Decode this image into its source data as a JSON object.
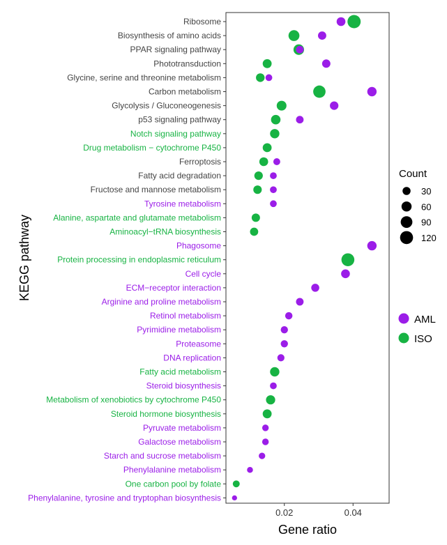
{
  "chart_data": {
    "type": "scatter",
    "xlabel": "Gene ratio",
    "ylabel": "KEGG pathway",
    "xlim": [
      0.003,
      0.0505
    ],
    "xticks": [
      0.02,
      0.04
    ],
    "xtick_labels": [
      "0.02",
      "0.04"
    ],
    "grid": false,
    "legend_size": {
      "title": "Count",
      "entries": [
        {
          "label": "30",
          "value": 30
        },
        {
          "label": "60",
          "value": 60
        },
        {
          "label": "90",
          "value": 90
        },
        {
          "label": "120",
          "value": 120
        }
      ]
    },
    "legend_color": {
      "entries": [
        {
          "label": "AML",
          "color": "#9b1de8"
        },
        {
          "label": "ISO",
          "color": "#17b343"
        }
      ]
    },
    "colors": {
      "AML": "#9b1de8",
      "ISO": "#17b343",
      "shared": "#444444"
    },
    "categories": [
      {
        "name": "Ribosome",
        "label_group": "shared"
      },
      {
        "name": "Biosynthesis of amino acids",
        "label_group": "shared"
      },
      {
        "name": "PPAR signaling pathway",
        "label_group": "shared"
      },
      {
        "name": "Phototransduction",
        "label_group": "shared"
      },
      {
        "name": "Glycine, serine and threonine metabolism",
        "label_group": "shared"
      },
      {
        "name": "Carbon metabolism",
        "label_group": "shared"
      },
      {
        "name": "Glycolysis / Gluconeogenesis",
        "label_group": "shared"
      },
      {
        "name": "p53 signaling pathway",
        "label_group": "shared"
      },
      {
        "name": "Notch signaling pathway",
        "label_group": "ISO"
      },
      {
        "name": "Drug metabolism − cytochrome P450",
        "label_group": "ISO"
      },
      {
        "name": "Ferroptosis",
        "label_group": "shared"
      },
      {
        "name": "Fatty acid degradation",
        "label_group": "shared"
      },
      {
        "name": "Fructose and mannose metabolism",
        "label_group": "shared"
      },
      {
        "name": "Tyrosine metabolism",
        "label_group": "AML"
      },
      {
        "name": "Alanine, aspartate and glutamate metabolism",
        "label_group": "ISO"
      },
      {
        "name": "Aminoacyl−tRNA biosynthesis",
        "label_group": "ISO"
      },
      {
        "name": "Phagosome",
        "label_group": "AML"
      },
      {
        "name": "Protein processing in endoplasmic reticulum",
        "label_group": "ISO"
      },
      {
        "name": "Cell cycle",
        "label_group": "AML"
      },
      {
        "name": "ECM−receptor interaction",
        "label_group": "AML"
      },
      {
        "name": "Arginine and proline metabolism",
        "label_group": "AML"
      },
      {
        "name": "Retinol metabolism",
        "label_group": "AML"
      },
      {
        "name": "Pyrimidine metabolism",
        "label_group": "AML"
      },
      {
        "name": "Proteasome",
        "label_group": "AML"
      },
      {
        "name": "DNA replication",
        "label_group": "AML"
      },
      {
        "name": "Fatty acid metabolism",
        "label_group": "ISO"
      },
      {
        "name": "Steroid biosynthesis",
        "label_group": "AML"
      },
      {
        "name": "Metabolism of xenobiotics by cytochrome P450",
        "label_group": "ISO"
      },
      {
        "name": "Steroid hormone biosynthesis",
        "label_group": "ISO"
      },
      {
        "name": "Pyruvate metabolism",
        "label_group": "AML"
      },
      {
        "name": "Galactose metabolism",
        "label_group": "AML"
      },
      {
        "name": "Starch and sucrose metabolism",
        "label_group": "AML"
      },
      {
        "name": "Phenylalanine metabolism",
        "label_group": "AML"
      },
      {
        "name": "One carbon pool by folate",
        "label_group": "ISO"
      },
      {
        "name": "Phenylalanine, tyrosine and tryptophan biosynthesis",
        "label_group": "AML"
      }
    ],
    "series": [
      {
        "name": "ISO",
        "points": [
          {
            "pathway": "Ribosome",
            "x": 0.0403,
            "count": 125
          },
          {
            "pathway": "Biosynthesis of amino acids",
            "x": 0.0228,
            "count": 75
          },
          {
            "pathway": "PPAR signaling pathway",
            "x": 0.0242,
            "count": 68
          },
          {
            "pathway": "Phototransduction",
            "x": 0.015,
            "count": 42
          },
          {
            "pathway": "Glycine, serine and threonine metabolism",
            "x": 0.013,
            "count": 38
          },
          {
            "pathway": "Carbon metabolism",
            "x": 0.0302,
            "count": 105
          },
          {
            "pathway": "Glycolysis / Gluconeogenesis",
            "x": 0.0192,
            "count": 55
          },
          {
            "pathway": "p53 signaling pathway",
            "x": 0.0175,
            "count": 50
          },
          {
            "pathway": "Notch signaling pathway",
            "x": 0.0172,
            "count": 48
          },
          {
            "pathway": "Drug metabolism − cytochrome P450",
            "x": 0.015,
            "count": 42
          },
          {
            "pathway": "Ferroptosis",
            "x": 0.014,
            "count": 40
          },
          {
            "pathway": "Fatty acid degradation",
            "x": 0.0125,
            "count": 36
          },
          {
            "pathway": "Fructose and mannose metabolism",
            "x": 0.0122,
            "count": 35
          },
          {
            "pathway": "Alanine, aspartate and glutamate metabolism",
            "x": 0.0117,
            "count": 34
          },
          {
            "pathway": "Aminoacyl−tRNA biosynthesis",
            "x": 0.0112,
            "count": 32
          },
          {
            "pathway": "Protein processing in endoplasmic reticulum",
            "x": 0.0385,
            "count": 118
          },
          {
            "pathway": "Fatty acid metabolism",
            "x": 0.0172,
            "count": 48
          },
          {
            "pathway": "Metabolism of xenobiotics by cytochrome P450",
            "x": 0.016,
            "count": 46
          },
          {
            "pathway": "Steroid hormone biosynthesis",
            "x": 0.015,
            "count": 42
          },
          {
            "pathway": "One carbon pool by folate",
            "x": 0.006,
            "count": 18
          }
        ]
      },
      {
        "name": "AML",
        "points": [
          {
            "pathway": "Ribosome",
            "x": 0.0365,
            "count": 40
          },
          {
            "pathway": "Biosynthesis of amino acids",
            "x": 0.031,
            "count": 33
          },
          {
            "pathway": "PPAR signaling pathway",
            "x": 0.0245,
            "count": 25
          },
          {
            "pathway": "Phototransduction",
            "x": 0.0322,
            "count": 34
          },
          {
            "pathway": "Glycine, serine and threonine metabolism",
            "x": 0.0155,
            "count": 17
          },
          {
            "pathway": "Carbon metabolism",
            "x": 0.0455,
            "count": 48
          },
          {
            "pathway": "Glycolysis / Gluconeogenesis",
            "x": 0.0345,
            "count": 36
          },
          {
            "pathway": "p53 signaling pathway",
            "x": 0.0245,
            "count": 25
          },
          {
            "pathway": "Ferroptosis",
            "x": 0.0178,
            "count": 18
          },
          {
            "pathway": "Fatty acid degradation",
            "x": 0.0168,
            "count": 17
          },
          {
            "pathway": "Fructose and mannose metabolism",
            "x": 0.0168,
            "count": 17
          },
          {
            "pathway": "Tyrosine metabolism",
            "x": 0.0168,
            "count": 17
          },
          {
            "pathway": "Phagosome",
            "x": 0.0455,
            "count": 48
          },
          {
            "pathway": "Cell cycle",
            "x": 0.0378,
            "count": 40
          },
          {
            "pathway": "ECM−receptor interaction",
            "x": 0.029,
            "count": 30
          },
          {
            "pathway": "Arginine and proline metabolism",
            "x": 0.0245,
            "count": 25
          },
          {
            "pathway": "Retinol metabolism",
            "x": 0.0213,
            "count": 22
          },
          {
            "pathway": "Pyrimidine metabolism",
            "x": 0.02,
            "count": 21
          },
          {
            "pathway": "Proteasome",
            "x": 0.02,
            "count": 21
          },
          {
            "pathway": "DNA replication",
            "x": 0.019,
            "count": 20
          },
          {
            "pathway": "Steroid biosynthesis",
            "x": 0.0168,
            "count": 17
          },
          {
            "pathway": "Pyruvate metabolism",
            "x": 0.0145,
            "count": 15
          },
          {
            "pathway": "Galactose metabolism",
            "x": 0.0145,
            "count": 15
          },
          {
            "pathway": "Starch and sucrose metabolism",
            "x": 0.0135,
            "count": 14
          },
          {
            "pathway": "Phenylalanine metabolism",
            "x": 0.01,
            "count": 10
          },
          {
            "pathway": "Phenylalanine, tyrosine and tryptophan biosynthesis",
            "x": 0.0055,
            "count": 5
          }
        ]
      }
    ]
  }
}
